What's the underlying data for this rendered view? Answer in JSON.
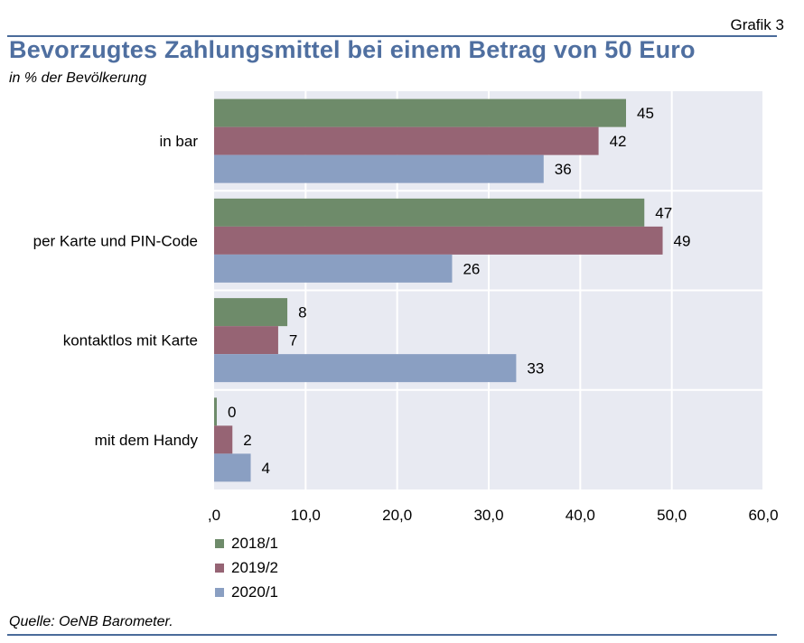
{
  "header": {
    "figure_tag": "Grafik 3",
    "title": "Bevorzugtes Zahlungsmittel bei einem Betrag von 50 Euro",
    "subtitle": "in % der Bevölkerung"
  },
  "footer": {
    "source": "Quelle: OeNB Barometer."
  },
  "chart_data": {
    "type": "bar",
    "orientation": "horizontal",
    "categories": [
      "in bar",
      "per Karte und PIN-Code",
      "kontaktlos mit Karte",
      "mit dem Handy"
    ],
    "series": [
      {
        "name": "2018/1",
        "color": "#6e8b6a",
        "values": [
          45,
          47,
          8,
          0
        ]
      },
      {
        "name": "2019/2",
        "color": "#966474",
        "values": [
          42,
          49,
          7,
          2
        ]
      },
      {
        "name": "2020/1",
        "color": "#8a9fc2",
        "values": [
          36,
          26,
          33,
          4
        ]
      }
    ],
    "xlim": [
      0,
      60
    ],
    "x_ticks": [
      ",0",
      "10,0",
      "20,0",
      "30,0",
      "40,0",
      "50,0",
      "60,0"
    ],
    "grid": true,
    "plot_background": "#e8eaf2",
    "legend_position": "bottom-left"
  }
}
